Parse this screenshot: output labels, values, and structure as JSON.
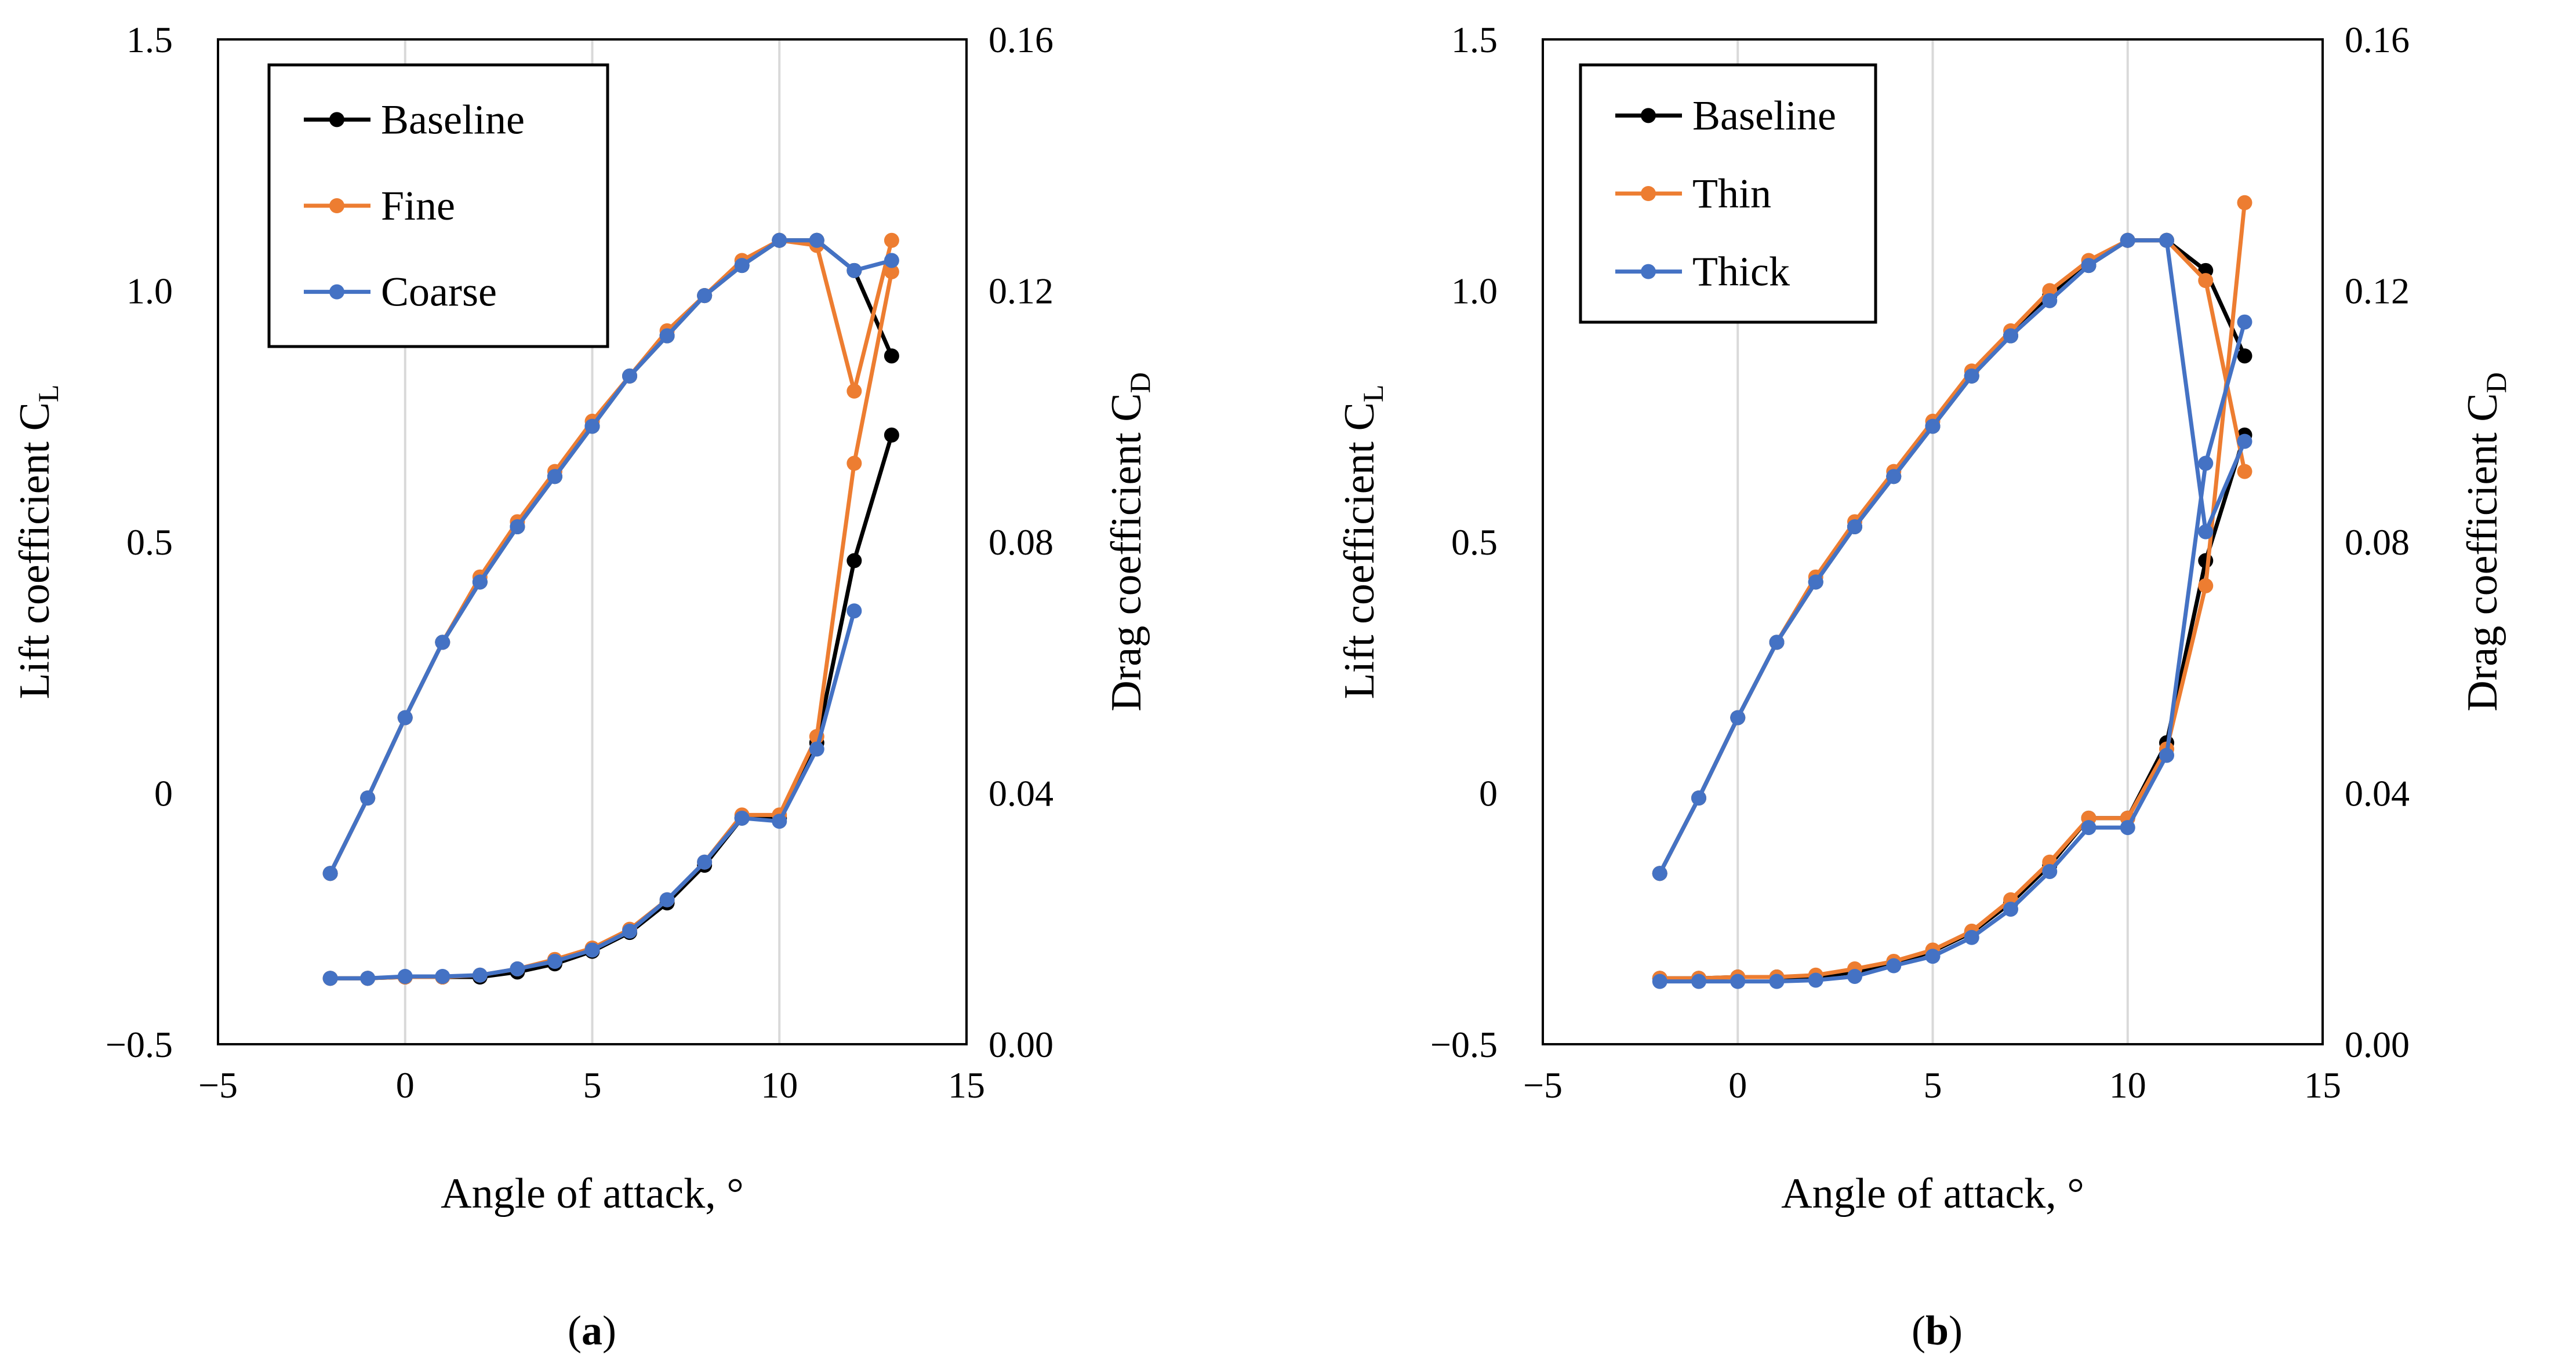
{
  "chart_data": [
    {
      "type": "line",
      "panel_label_open": "(",
      "panel_label_letter": "a",
      "panel_label_close": ")",
      "xlabel": "Angle of attack, °",
      "ylabel_left_main": "Lift coefficient C",
      "ylabel_left_sub": "L",
      "ylabel_right_main": "Drag coefficient C",
      "ylabel_right_sub": "D",
      "xlim": [
        -5,
        15
      ],
      "ylim_left": [
        -0.5,
        1.5
      ],
      "ylim_right": [
        0.0,
        0.16
      ],
      "x_ticks": [
        -5,
        0,
        5,
        10,
        15
      ],
      "x_tick_labels": [
        "−5",
        "0",
        "5",
        "10",
        "15"
      ],
      "y_left_ticks": [
        -0.5,
        0,
        0.5,
        1.0,
        1.5
      ],
      "y_left_tick_labels": [
        "−0.5",
        "0",
        "0.5",
        "1.0",
        "1.5"
      ],
      "y_right_ticks": [
        0.0,
        0.04,
        0.08,
        0.12,
        0.16
      ],
      "y_right_tick_labels": [
        "0.00",
        "0.04",
        "0.08",
        "0.12",
        "0.16"
      ],
      "grid": "vertical",
      "legend_position": "top-left",
      "series": [
        {
          "name": "Baseline",
          "color": "#000000",
          "lift": {
            "x": [
              -2,
              -1,
              0,
              1,
              2,
              3,
              4,
              5,
              6,
              7,
              8,
              9,
              10,
              11,
              12,
              13
            ],
            "y": [
              -0.16,
              -0.01,
              0.15,
              0.3,
              0.42,
              0.53,
              0.63,
              0.73,
              0.83,
              0.91,
              0.99,
              1.05,
              1.1,
              1.1,
              1.04,
              0.87
            ]
          },
          "drag": {
            "x": [
              -2,
              -1,
              0,
              1,
              2,
              3,
              4,
              5,
              6,
              7,
              8,
              9,
              10,
              11,
              12,
              13
            ],
            "y": [
              0.0105,
              0.0105,
              0.0107,
              0.0107,
              0.0107,
              0.0115,
              0.0128,
              0.0148,
              0.0178,
              0.0225,
              0.0285,
              0.036,
              0.036,
              0.048,
              0.077,
              0.097
            ]
          }
        },
        {
          "name": "Fine",
          "color": "#ED7D31",
          "lift": {
            "x": [
              -2,
              -1,
              0,
              1,
              2,
              3,
              4,
              5,
              6,
              7,
              8,
              9,
              10,
              11,
              12,
              13
            ],
            "y": [
              -0.16,
              -0.01,
              0.15,
              0.3,
              0.43,
              0.54,
              0.64,
              0.74,
              0.83,
              0.92,
              0.99,
              1.06,
              1.1,
              1.09,
              0.8,
              1.1
            ]
          },
          "drag": {
            "x": [
              -2,
              -1,
              0,
              1,
              2,
              3,
              4,
              5,
              6,
              7,
              8,
              9,
              10,
              11,
              12,
              13
            ],
            "y": [
              0.0105,
              0.0105,
              0.0107,
              0.0107,
              0.011,
              0.012,
              0.0135,
              0.0153,
              0.0183,
              0.023,
              0.029,
              0.0365,
              0.0365,
              0.049,
              0.0925,
              0.123
            ]
          }
        },
        {
          "name": "Coarse",
          "color": "#4472C4",
          "lift": {
            "x": [
              -2,
              -1,
              0,
              1,
              2,
              3,
              4,
              5,
              6,
              7,
              8,
              9,
              10,
              11,
              12,
              13
            ],
            "y": [
              -0.16,
              -0.01,
              0.15,
              0.3,
              0.42,
              0.53,
              0.63,
              0.73,
              0.83,
              0.91,
              0.99,
              1.05,
              1.1,
              1.1,
              1.04,
              1.06
            ]
          },
          "drag": {
            "x": [
              -2,
              -1,
              0,
              1,
              2,
              3,
              4,
              5,
              6,
              7,
              8,
              9,
              10,
              11,
              12
            ],
            "y": [
              0.0105,
              0.0105,
              0.0108,
              0.0108,
              0.011,
              0.012,
              0.0132,
              0.015,
              0.018,
              0.023,
              0.029,
              0.036,
              0.0355,
              0.047,
              0.069
            ]
          }
        }
      ]
    },
    {
      "type": "line",
      "panel_label_open": "(",
      "panel_label_letter": "b",
      "panel_label_close": ")",
      "xlabel": "Angle of attack, °",
      "ylabel_left_main": "Lift coefficient C",
      "ylabel_left_sub": "L",
      "ylabel_right_main": "Drag coefficient C",
      "ylabel_right_sub": "D",
      "xlim": [
        -5,
        15
      ],
      "ylim_left": [
        -0.5,
        1.5
      ],
      "ylim_right": [
        0.0,
        0.16
      ],
      "x_ticks": [
        -5,
        0,
        5,
        10,
        15
      ],
      "x_tick_labels": [
        "−5",
        "0",
        "5",
        "10",
        "15"
      ],
      "y_left_ticks": [
        -0.5,
        0,
        0.5,
        1.0,
        1.5
      ],
      "y_left_tick_labels": [
        "−0.5",
        "0",
        "0.5",
        "1.0",
        "1.5"
      ],
      "y_right_ticks": [
        0.0,
        0.04,
        0.08,
        0.12,
        0.16
      ],
      "y_right_tick_labels": [
        "0.00",
        "0.04",
        "0.08",
        "0.12",
        "0.16"
      ],
      "grid": "vertical",
      "legend_position": "top-left",
      "series": [
        {
          "name": "Baseline",
          "color": "#000000",
          "lift": {
            "x": [
              -2,
              -1,
              0,
              1,
              2,
              3,
              4,
              5,
              6,
              7,
              8,
              9,
              10,
              11,
              12,
              13
            ],
            "y": [
              -0.16,
              -0.01,
              0.15,
              0.3,
              0.42,
              0.53,
              0.63,
              0.73,
              0.83,
              0.91,
              0.99,
              1.05,
              1.1,
              1.1,
              1.04,
              0.87
            ]
          },
          "drag": {
            "x": [
              -2,
              -1,
              0,
              1,
              2,
              3,
              4,
              5,
              6,
              7,
              8,
              9,
              10,
              11,
              12,
              13
            ],
            "y": [
              0.0105,
              0.0105,
              0.0107,
              0.0107,
              0.0107,
              0.0115,
              0.0128,
              0.0148,
              0.0178,
              0.0225,
              0.0285,
              0.036,
              0.036,
              0.048,
              0.077,
              0.097
            ]
          }
        },
        {
          "name": "Thin",
          "color": "#ED7D31",
          "lift": {
            "x": [
              -2,
              -1,
              0,
              1,
              2,
              3,
              4,
              5,
              6,
              7,
              8,
              9,
              10,
              11,
              12,
              13
            ],
            "y": [
              -0.16,
              -0.01,
              0.15,
              0.3,
              0.43,
              0.54,
              0.64,
              0.74,
              0.84,
              0.92,
              1.0,
              1.06,
              1.1,
              1.1,
              1.02,
              0.64
            ]
          },
          "drag": {
            "x": [
              -2,
              -1,
              0,
              1,
              2,
              3,
              4,
              5,
              6,
              7,
              8,
              9,
              10,
              11,
              12,
              13
            ],
            "y": [
              0.0105,
              0.0105,
              0.0107,
              0.0107,
              0.011,
              0.012,
              0.0132,
              0.015,
              0.018,
              0.023,
              0.029,
              0.036,
              0.036,
              0.047,
              0.073,
              0.134
            ]
          }
        },
        {
          "name": "Thick",
          "color": "#4472C4",
          "lift": {
            "x": [
              -2,
              -1,
              0,
              1,
              2,
              3,
              4,
              5,
              6,
              7,
              8,
              9,
              10,
              11,
              12,
              13
            ],
            "y": [
              -0.16,
              -0.01,
              0.15,
              0.3,
              0.42,
              0.53,
              0.63,
              0.73,
              0.83,
              0.91,
              0.98,
              1.05,
              1.1,
              1.1,
              0.52,
              0.7
            ]
          },
          "drag": {
            "x": [
              -2,
              -1,
              0,
              1,
              2,
              3,
              4,
              5,
              6,
              7,
              8,
              9,
              10,
              11,
              12,
              13
            ],
            "y": [
              0.01,
              0.01,
              0.01,
              0.01,
              0.0102,
              0.0108,
              0.0125,
              0.014,
              0.017,
              0.0215,
              0.0275,
              0.0345,
              0.0345,
              0.046,
              0.0925,
              0.115
            ]
          }
        }
      ]
    }
  ]
}
